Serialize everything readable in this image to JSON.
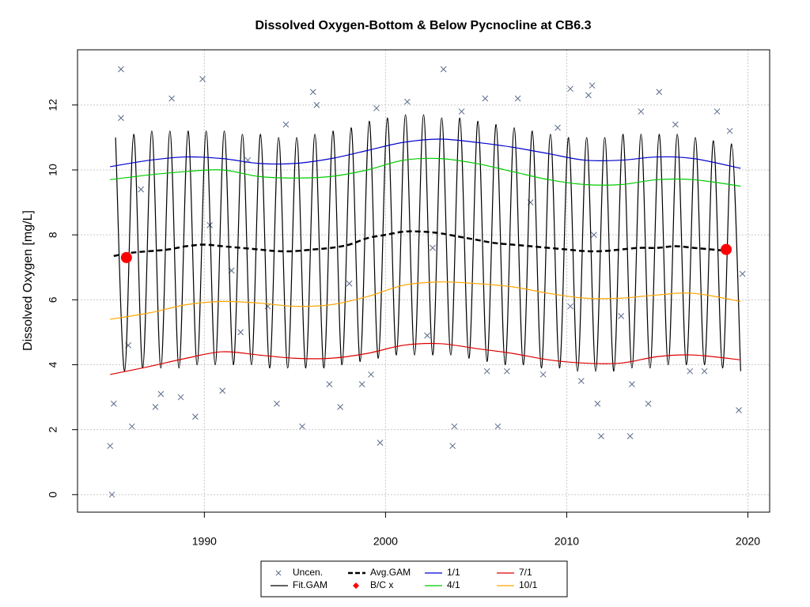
{
  "chart_data": {
    "type": "line",
    "title": "Dissolved Oxygen-Bottom & Below Pycnocline at CB6.3",
    "y_label": "Dissolved Oxygen [mg/L]",
    "xlim": [
      1983.0,
      2021.2
    ],
    "xticks": [
      1990,
      2000,
      2010,
      2020
    ],
    "ylim": [
      -0.54,
      13.7
    ],
    "yticks": [
      0,
      2,
      4,
      6,
      8,
      10,
      12
    ],
    "grid": true,
    "legend": "bottom",
    "series": [
      {
        "name": "Uncen.",
        "color": "#5a6a8a",
        "mark": "x",
        "x": [
          1984.8,
          1984.9,
          1985.0,
          1985.4,
          1985.4,
          1985.8,
          1986.0,
          1986.5,
          1987.3,
          1987.6,
          1988.2,
          1988.7,
          1989.5,
          1989.9,
          1990.3,
          1991.0,
          1991.5,
          1992.4,
          1993.5,
          1994.0,
          1994.5,
          1995.4,
          1996.0,
          1996.2,
          1996.9,
          1997.5,
          1998.7,
          1999.2,
          1999.7,
          1999.5,
          2001.2,
          2002.3,
          2002.6,
          2003.2,
          2003.7,
          2003.8,
          2004.2,
          2005.5,
          2005.6,
          2006.2,
          2006.7,
          2007.3,
          2008.7,
          2009.5,
          2010.2,
          2010.2,
          2010.8,
          2011.2,
          2011.4,
          2011.5,
          2011.7,
          2011.9,
          2013.5,
          2013.6,
          2014.1,
          2014.5,
          2015.1,
          2016.0,
          2016.8,
          2017.6,
          2018.3,
          2019.0,
          2019.5,
          2019.7,
          1992.0,
          1998.0,
          2008.0,
          2013.0
        ],
        "values": [
          1.5,
          0.0,
          2.8,
          13.1,
          11.6,
          4.6,
          2.1,
          9.4,
          2.7,
          3.1,
          12.2,
          3.0,
          2.4,
          12.8,
          8.3,
          3.2,
          6.9,
          10.3,
          5.8,
          2.8,
          11.4,
          2.1,
          12.4,
          12.0,
          3.4,
          2.7,
          3.4,
          3.7,
          1.6,
          11.9,
          12.1,
          4.9,
          7.6,
          13.1,
          1.5,
          2.1,
          11.8,
          12.2,
          3.8,
          2.1,
          3.8,
          12.2,
          3.7,
          11.3,
          5.8,
          12.5,
          3.5,
          12.3,
          12.6,
          8.0,
          2.8,
          1.8,
          1.8,
          3.4,
          11.8,
          2.8,
          12.4,
          11.4,
          3.8,
          3.8,
          11.8,
          11.2,
          2.6,
          6.8,
          5.0,
          6.5,
          9.0,
          5.5
        ]
      },
      {
        "name": "Fit.GAM",
        "color": "#000000",
        "mark": "line",
        "x": [
          1985.1,
          1985.6,
          1986.1,
          1986.6,
          1987.1,
          1987.6,
          1988.1,
          1988.6,
          1989.1,
          1989.6,
          1990.1,
          1990.6,
          1991.1,
          1991.6,
          1992.1,
          1992.6,
          1993.1,
          1993.6,
          1994.1,
          1994.6,
          1995.1,
          1995.6,
          1996.1,
          1996.6,
          1997.1,
          1997.6,
          1998.1,
          1998.6,
          1999.1,
          1999.6,
          2000.1,
          2000.6,
          2001.1,
          2001.6,
          2002.1,
          2002.6,
          2003.1,
          2003.6,
          2004.1,
          2004.6,
          2005.1,
          2005.6,
          2006.1,
          2006.6,
          2007.1,
          2007.6,
          2008.1,
          2008.6,
          2009.1,
          2009.6,
          2010.1,
          2010.6,
          2011.1,
          2011.6,
          2012.1,
          2012.6,
          2013.1,
          2013.6,
          2014.1,
          2014.6,
          2015.1,
          2015.6,
          2016.1,
          2016.6,
          2017.1,
          2017.6,
          2018.1,
          2018.6,
          2019.1,
          2019.6
        ],
        "values": [
          11.0,
          3.8,
          11.1,
          3.9,
          11.2,
          3.9,
          11.2,
          3.9,
          11.2,
          4.0,
          11.2,
          4.0,
          11.2,
          4.0,
          11.1,
          4.0,
          11.1,
          3.9,
          11.0,
          3.9,
          11.0,
          3.9,
          11.1,
          3.9,
          11.2,
          4.0,
          11.3,
          4.1,
          11.5,
          4.2,
          11.6,
          4.3,
          11.7,
          4.3,
          11.7,
          4.3,
          11.6,
          4.3,
          11.6,
          4.2,
          11.5,
          4.1,
          11.4,
          4.0,
          11.3,
          4.0,
          11.2,
          3.9,
          11.1,
          3.9,
          11.0,
          3.8,
          11.0,
          3.8,
          11.0,
          3.8,
          11.1,
          3.9,
          11.1,
          3.9,
          11.1,
          4.0,
          11.1,
          4.0,
          11.0,
          4.0,
          10.9,
          3.9,
          10.8,
          3.8
        ]
      },
      {
        "name": "Avg.GAM",
        "color": "#000000",
        "mark": "dashed",
        "x": [
          1985,
          1986,
          1987,
          1988,
          1989,
          1990,
          1991,
          1992,
          1993,
          1994,
          1995,
          1996,
          1997,
          1998,
          1999,
          2000,
          2001,
          2002,
          2003,
          2004,
          2005,
          2006,
          2007,
          2008,
          2009,
          2010,
          2011,
          2012,
          2013,
          2014,
          2015,
          2016,
          2017,
          2018,
          2019
        ],
        "values": [
          7.35,
          7.45,
          7.5,
          7.55,
          7.65,
          7.7,
          7.65,
          7.6,
          7.55,
          7.5,
          7.5,
          7.55,
          7.6,
          7.7,
          7.9,
          8.0,
          8.1,
          8.1,
          8.05,
          7.95,
          7.85,
          7.75,
          7.7,
          7.65,
          7.6,
          7.55,
          7.5,
          7.5,
          7.55,
          7.6,
          7.6,
          7.65,
          7.6,
          7.55,
          7.5
        ]
      },
      {
        "name": "B/C x",
        "color": "#ff0000",
        "mark": "point",
        "x": [
          1985.7,
          2018.8
        ],
        "values": [
          7.3,
          7.55
        ]
      },
      {
        "name": "1/1",
        "color": "#0000cc",
        "mark": "line",
        "x": [
          1984.8,
          1987,
          1989,
          1991,
          1993,
          1995,
          1997,
          1999,
          2001,
          2003,
          2005,
          2007,
          2009,
          2011,
          2013,
          2015,
          2017,
          2019.6
        ],
        "values": [
          10.1,
          10.3,
          10.4,
          10.35,
          10.2,
          10.2,
          10.35,
          10.6,
          10.85,
          10.95,
          10.85,
          10.7,
          10.5,
          10.3,
          10.3,
          10.4,
          10.35,
          10.05
        ]
      },
      {
        "name": "4/1",
        "color": "#00cc00",
        "mark": "line",
        "x": [
          1984.8,
          1987,
          1989,
          1991,
          1993,
          1995,
          1997,
          1999,
          2001,
          2003,
          2005,
          2007,
          2009,
          2011,
          2013,
          2015,
          2017,
          2019.6
        ],
        "values": [
          9.7,
          9.85,
          9.95,
          10.0,
          9.8,
          9.75,
          9.8,
          10.0,
          10.3,
          10.35,
          10.2,
          9.95,
          9.7,
          9.55,
          9.55,
          9.7,
          9.7,
          9.5
        ]
      },
      {
        "name": "7/1",
        "color": "#dd0000",
        "mark": "line",
        "x": [
          1984.8,
          1987,
          1989,
          1991,
          1993,
          1995,
          1997,
          1999,
          2001,
          2003,
          2005,
          2007,
          2009,
          2011,
          2013,
          2015,
          2017,
          2019.6
        ],
        "values": [
          3.7,
          3.95,
          4.2,
          4.4,
          4.3,
          4.2,
          4.2,
          4.35,
          4.6,
          4.65,
          4.5,
          4.35,
          4.15,
          4.05,
          4.05,
          4.25,
          4.3,
          4.15
        ]
      },
      {
        "name": "10/1",
        "color": "#ffa500",
        "mark": "line",
        "x": [
          1984.8,
          1987,
          1989,
          1991,
          1993,
          1995,
          1997,
          1999,
          2001,
          2003,
          2005,
          2007,
          2009,
          2011,
          2013,
          2015,
          2017,
          2019.6
        ],
        "values": [
          5.4,
          5.6,
          5.85,
          5.95,
          5.9,
          5.8,
          5.85,
          6.1,
          6.45,
          6.55,
          6.5,
          6.4,
          6.2,
          6.05,
          6.05,
          6.15,
          6.2,
          5.95
        ]
      }
    ]
  }
}
